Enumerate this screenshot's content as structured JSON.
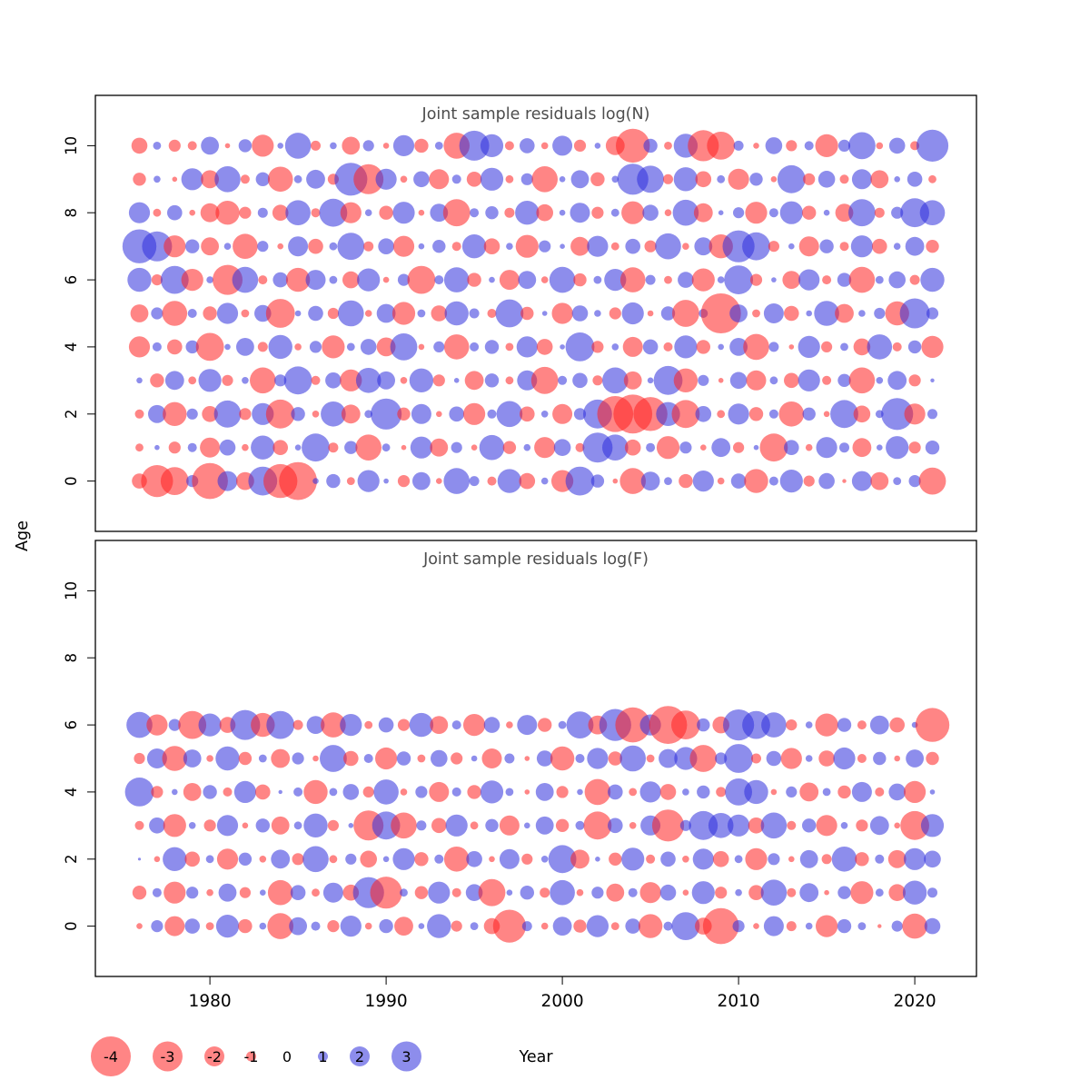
{
  "figure": {
    "xlab": "Year",
    "ylab": "Age",
    "x_ticks": [
      1980,
      1990,
      2000,
      2010,
      2020
    ],
    "colors": {
      "negative": "#ff2020",
      "positive": "#3030dd",
      "title": "#4d4d4d",
      "axis": "#000000"
    }
  },
  "legend": {
    "values": [
      -4,
      -3,
      -2,
      -1,
      0,
      1,
      2,
      3
    ]
  },
  "years": [
    1976,
    1977,
    1978,
    1979,
    1980,
    1981,
    1982,
    1983,
    1984,
    1985,
    1986,
    1987,
    1988,
    1989,
    1990,
    1991,
    1992,
    1993,
    1994,
    1995,
    1996,
    1997,
    1998,
    1999,
    2000,
    2001,
    2002,
    2003,
    2004,
    2005,
    2006,
    2007,
    2008,
    2009,
    2010,
    2011,
    2012,
    2013,
    2014,
    2015,
    2016,
    2017,
    2018,
    2019,
    2020,
    2021
  ],
  "chart_data": [
    {
      "type": "scatter",
      "subtype": "bubble-residuals",
      "title": "Joint sample residuals log(N)",
      "xlabel": "Year",
      "ylabel": "Age",
      "xlim": [
        1973.5,
        2023.5
      ],
      "ylim": [
        -1.5,
        11.5
      ],
      "y_ticks": [
        0,
        2,
        4,
        6,
        8,
        10
      ],
      "color_rule": "negative residuals red, positive residuals blue, radius proportional to |value|",
      "series": [
        {
          "age": 0,
          "values": [
            -1.5,
            -3.2,
            -2.8,
            1.2,
            -3.6,
            2.0,
            -1.8,
            2.9,
            -3.4,
            -3.8,
            0.6,
            1.4,
            -0.8,
            2.2,
            0.5,
            -1.2,
            1.8,
            -0.6,
            2.6,
            1.0,
            -0.9,
            2.4,
            -1.6,
            0.7,
            -2.2,
            2.9,
            1.3,
            -0.5,
            -2.6,
            1.9,
            0.8,
            -1.4,
            2.1,
            -0.7,
            1.5,
            -2.4,
            0.9,
            2.3,
            -1.1,
            1.6,
            -0.4,
            2.0,
            -1.8,
            0.8,
            1.2,
            -2.7
          ]
        },
        {
          "age": 1,
          "values": [
            -0.8,
            0.5,
            -1.2,
            0.9,
            -2.0,
            1.6,
            -0.7,
            2.4,
            -1.5,
            0.6,
            2.8,
            -1.0,
            1.3,
            -2.6,
            0.8,
            -0.5,
            2.2,
            -1.8,
            1.1,
            -0.6,
            2.5,
            -1.3,
            0.7,
            -2.1,
            1.7,
            -0.9,
            3.0,
            2.6,
            -1.6,
            0.9,
            -2.3,
            1.2,
            -0.6,
            1.9,
            -1.1,
            0.5,
            -2.8,
            1.5,
            -0.7,
            2.1,
            1.0,
            -1.9,
            0.6,
            2.3,
            -1.2,
            1.4
          ]
        },
        {
          "age": 2,
          "values": [
            -0.9,
            1.8,
            -2.4,
            1.1,
            -1.6,
            2.7,
            -1.2,
            2.2,
            -2.9,
            1.4,
            -0.7,
            2.5,
            -1.9,
            0.8,
            3.1,
            -1.3,
            2.0,
            -0.6,
            1.5,
            -2.2,
            0.9,
            2.6,
            -1.5,
            0.7,
            -2.0,
            1.2,
            2.9,
            -3.6,
            -3.9,
            -3.4,
            2.4,
            -2.8,
            1.6,
            -0.8,
            2.1,
            -1.4,
            0.9,
            -2.5,
            1.3,
            -0.6,
            2.8,
            -1.7,
            0.8,
            3.2,
            -2.1,
            1.0
          ]
        },
        {
          "age": 3,
          "values": [
            0.6,
            -1.4,
            1.9,
            -0.8,
            2.3,
            -1.1,
            0.7,
            -2.6,
            1.2,
            2.8,
            -0.9,
            1.6,
            -2.2,
            2.5,
            1.8,
            -0.7,
            2.4,
            -1.2,
            0.5,
            -1.9,
            1.4,
            -0.8,
            2.0,
            -2.7,
            0.9,
            1.5,
            -1.0,
            2.6,
            -1.8,
            0.6,
            2.9,
            -2.4,
            1.1,
            -0.5,
            1.7,
            -2.0,
            0.8,
            -1.5,
            2.2,
            -0.9,
            1.3,
            -2.6,
            0.7,
            1.9,
            -1.2,
            0.4
          ]
        },
        {
          "age": 4,
          "values": [
            -2.1,
            0.9,
            -1.5,
            1.3,
            -2.8,
            0.6,
            1.8,
            -1.0,
            2.4,
            -0.7,
            1.2,
            -2.3,
            0.8,
            1.6,
            -1.9,
            2.7,
            -0.6,
            1.1,
            -2.5,
            0.9,
            1.4,
            -0.8,
            2.1,
            -1.6,
            0.5,
            2.9,
            -1.2,
            0.7,
            -2.0,
            1.5,
            -0.9,
            2.3,
            -1.4,
            0.6,
            1.8,
            -2.6,
            1.0,
            -0.5,
            2.2,
            -1.1,
            0.8,
            -1.7,
            2.5,
            -0.9,
            1.3,
            -2.2
          ]
        },
        {
          "age": 5,
          "values": [
            -1.8,
            1.2,
            -2.5,
            0.9,
            -1.4,
            2.1,
            -0.8,
            1.7,
            -2.9,
            0.6,
            1.5,
            -1.1,
            2.6,
            -0.7,
            1.9,
            -2.3,
            0.8,
            -1.6,
            2.4,
            1.0,
            -0.9,
            2.8,
            -1.3,
            0.5,
            -2.1,
            1.6,
            0.7,
            -1.2,
            2.2,
            -0.6,
            1.4,
            -2.7,
            0.9,
            -4.0,
            1.8,
            -0.8,
            2.0,
            -1.5,
            0.6,
            2.5,
            -1.9,
            0.7,
            1.1,
            -2.4,
            3.0,
            1.2
          ]
        },
        {
          "age": 6,
          "values": [
            2.4,
            -1.1,
            2.8,
            -2.2,
            0.7,
            -3.0,
            2.6,
            -0.9,
            1.5,
            -2.4,
            2.0,
            0.8,
            -1.7,
            2.3,
            -0.6,
            1.2,
            -2.8,
            0.9,
            2.5,
            -1.4,
            0.6,
            -2.0,
            1.8,
            -0.7,
            2.6,
            -1.3,
            0.8,
            2.2,
            -2.5,
            1.0,
            -0.8,
            1.6,
            -2.3,
            0.7,
            2.9,
            -1.2,
            0.5,
            -1.8,
            2.1,
            -0.9,
            1.4,
            -2.6,
            0.8,
            1.7,
            -1.0,
            2.4
          ]
        },
        {
          "age": 7,
          "values": [
            3.4,
            3.0,
            -2.2,
            1.4,
            -1.8,
            0.7,
            -2.5,
            1.1,
            -0.6,
            2.0,
            -1.5,
            0.8,
            2.7,
            -1.0,
            1.6,
            -2.1,
            0.6,
            1.3,
            -0.9,
            2.4,
            -1.6,
            0.7,
            -2.3,
            1.2,
            0.5,
            -1.9,
            2.1,
            -0.8,
            1.5,
            -1.2,
            2.6,
            -0.7,
            1.8,
            -2.4,
            3.2,
            2.8,
            -1.1,
            0.6,
            -2.0,
            1.4,
            -0.9,
            2.2,
            -1.5,
            0.7,
            1.9,
            -1.3
          ]
        },
        {
          "age": 8,
          "values": [
            2.1,
            -0.8,
            1.5,
            -0.6,
            -1.9,
            -2.4,
            -1.2,
            1.0,
            -1.6,
            2.5,
            -0.9,
            2.8,
            -2.1,
            0.7,
            -1.4,
            2.2,
            -0.6,
            1.8,
            -2.7,
            0.9,
            1.3,
            -1.0,
            2.4,
            -1.7,
            0.6,
            2.0,
            -1.2,
            0.8,
            -2.3,
            1.6,
            -0.7,
            2.6,
            -1.9,
            0.5,
            1.1,
            -2.2,
            0.9,
            2.3,
            -1.4,
            0.6,
            -1.8,
            2.7,
            -1.0,
            1.2,
            2.9,
            2.5
          ]
        },
        {
          "age": 9,
          "values": [
            -1.3,
            0.7,
            -0.5,
            2.2,
            -1.8,
            2.6,
            -0.9,
            1.4,
            -2.5,
            0.8,
            1.9,
            -1.1,
            3.3,
            -3.0,
            2.1,
            -0.7,
            1.6,
            -2.0,
            0.9,
            -1.5,
            2.3,
            -0.8,
            1.2,
            -2.6,
            0.6,
            1.8,
            -1.4,
            0.7,
            3.1,
            2.7,
            -1.0,
            2.4,
            -1.6,
            0.8,
            -2.1,
            1.3,
            -0.6,
            2.8,
            -1.2,
            1.7,
            -0.9,
            2.0,
            -1.8,
            0.6,
            1.5,
            -0.8
          ]
        },
        {
          "age": 10,
          "values": [
            -1.6,
            0.8,
            -1.2,
            -0.9,
            1.8,
            -0.5,
            1.3,
            -2.2,
            0.6,
            2.6,
            -1.0,
            0.7,
            -1.8,
            1.1,
            -0.6,
            2.1,
            -1.4,
            0.8,
            -2.6,
            3.0,
            2.3,
            -0.9,
            1.5,
            -0.7,
            2.0,
            -1.2,
            0.6,
            -1.9,
            -3.4,
            1.4,
            -0.8,
            2.4,
            -3.1,
            -2.8,
            1.0,
            -0.6,
            1.7,
            -1.1,
            0.9,
            -2.3,
            1.2,
            2.7,
            -0.7,
            1.6,
            -0.9,
            3.2
          ]
        }
      ]
    },
    {
      "type": "scatter",
      "subtype": "bubble-residuals",
      "title": "Joint sample residuals log(F)",
      "xlabel": "Year",
      "ylabel": "Age",
      "xlim": [
        1973.5,
        2023.5
      ],
      "ylim": [
        -1.5,
        11.5
      ],
      "y_ticks": [
        0,
        2,
        4,
        6,
        8,
        10
      ],
      "color_rule": "negative residuals red, positive residuals blue, radius proportional to |value|",
      "series": [
        {
          "age": 0,
          "values": [
            -0.6,
            1.2,
            -2.0,
            1.5,
            -0.8,
            2.3,
            -1.4,
            0.7,
            -2.6,
            1.8,
            0.9,
            -1.2,
            2.1,
            -0.7,
            1.4,
            -1.9,
            0.6,
            2.4,
            -1.1,
            0.8,
            -1.6,
            -3.3,
            1.0,
            -0.7,
            1.9,
            -1.3,
            2.2,
            -0.8,
            1.5,
            -2.4,
            0.9,
            2.8,
            -1.7,
            -3.6,
            1.2,
            -0.6,
            2.0,
            -1.0,
            0.7,
            -2.2,
            1.4,
            0.8,
            -0.4,
            1.1,
            -2.5,
            1.6
          ]
        },
        {
          "age": 1,
          "values": [
            -1.4,
            0.9,
            -2.2,
            1.2,
            -0.7,
            1.8,
            -1.1,
            0.6,
            -2.5,
            1.5,
            -0.8,
            2.0,
            -1.6,
            3.1,
            -3.2,
            0.8,
            -1.3,
            2.2,
            -0.9,
            1.7,
            -2.7,
            0.6,
            1.4,
            -1.0,
            2.5,
            -0.7,
            1.2,
            -1.8,
            0.9,
            -2.1,
            1.6,
            -0.6,
            2.3,
            -1.2,
            0.7,
            -1.5,
            2.6,
            -0.9,
            1.9,
            -0.5,
            1.3,
            -2.3,
            0.8,
            -1.7,
            2.4,
            1.0
          ]
        },
        {
          "age": 2,
          "values": [
            0.3,
            -0.6,
            2.4,
            -1.5,
            0.8,
            -2.1,
            1.3,
            -0.7,
            1.9,
            -1.2,
            2.6,
            -0.8,
            1.1,
            -1.7,
            0.6,
            2.2,
            -1.4,
            0.9,
            -2.5,
            1.6,
            -0.6,
            2.0,
            -1.1,
            0.7,
            2.8,
            -1.9,
            0.5,
            -1.3,
            2.3,
            -0.9,
            1.5,
            -0.7,
            2.1,
            -1.6,
            0.8,
            -2.2,
            1.2,
            -0.6,
            1.8,
            -1.0,
            2.5,
            -1.4,
            0.9,
            -1.8,
            2.2,
            1.7
          ]
        },
        {
          "age": 3,
          "values": [
            -0.9,
            1.6,
            -2.3,
            0.7,
            -1.2,
            2.1,
            -0.6,
            1.4,
            -1.8,
            0.8,
            2.4,
            -1.1,
            0.5,
            -3.0,
            2.8,
            -2.6,
            1.0,
            -1.5,
            2.2,
            -0.8,
            1.3,
            -2.0,
            0.6,
            1.8,
            -1.3,
            0.9,
            -2.8,
            1.5,
            -0.7,
            2.0,
            -3.2,
            1.1,
            2.9,
            2.5,
            2.2,
            -1.6,
            2.6,
            -0.9,
            1.4,
            -2.1,
            0.7,
            -1.2,
            1.9,
            -0.6,
            -2.9,
            2.3
          ]
        },
        {
          "age": 4,
          "values": [
            2.9,
            -1.2,
            0.6,
            -1.8,
            1.4,
            -0.9,
            2.2,
            -1.5,
            0.4,
            0.9,
            -2.4,
            0.8,
            1.6,
            -1.1,
            2.5,
            -0.7,
            1.2,
            -2.0,
            0.9,
            -1.4,
            2.3,
            0.8,
            -0.5,
            1.8,
            -1.2,
            0.6,
            -2.6,
            1.5,
            -0.8,
            2.1,
            -1.6,
            0.7,
            1.3,
            -1.0,
            2.7,
            2.4,
            -0.6,
            1.1,
            -1.9,
            0.8,
            -1.3,
            2.0,
            -0.9,
            1.7,
            -2.2,
            0.5
          ]
        },
        {
          "age": 5,
          "values": [
            -1.1,
            2.0,
            -2.5,
            1.8,
            -0.7,
            2.4,
            -1.3,
            0.8,
            -1.9,
            1.2,
            -0.6,
            2.7,
            -1.5,
            0.9,
            -2.2,
            1.4,
            -0.8,
            1.7,
            -1.2,
            0.6,
            -2.0,
            1.0,
            -0.5,
            1.6,
            -2.4,
            0.9,
            2.1,
            -1.4,
            2.6,
            -0.8,
            1.9,
            2.3,
            -2.7,
            1.2,
            2.9,
            -1.0,
            1.5,
            -2.1,
            0.7,
            -1.6,
            2.2,
            -0.9,
            1.3,
            -0.6,
            1.8,
            -1.3
          ]
        },
        {
          "age": 6,
          "values": [
            2.6,
            -2.1,
            1.2,
            -2.8,
            2.3,
            -1.6,
            3.0,
            -2.4,
            2.8,
            -1.0,
            1.8,
            -2.5,
            2.2,
            -0.8,
            1.5,
            -1.2,
            2.4,
            -1.8,
            0.9,
            -2.2,
            1.6,
            -0.7,
            2.0,
            -1.4,
            0.8,
            2.7,
            -1.9,
            3.2,
            -3.5,
            2.1,
            -3.8,
            -2.9,
            1.3,
            -1.7,
            3.1,
            2.8,
            2.5,
            -1.1,
            0.7,
            -2.3,
            1.4,
            -0.9,
            1.9,
            -1.5,
            0.6,
            -3.4
          ]
        }
      ]
    }
  ]
}
